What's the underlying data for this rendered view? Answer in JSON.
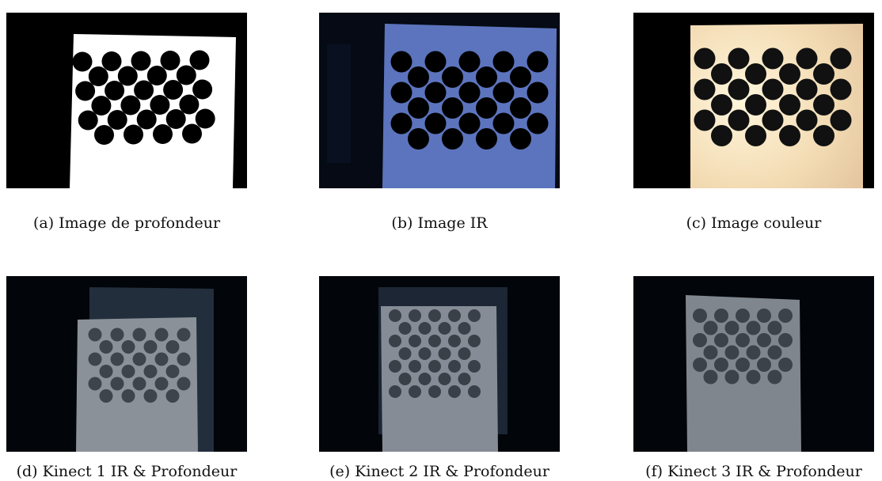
{
  "figure": {
    "panels": [
      {
        "id": "a",
        "caption": "(a) Image de profondeur"
      },
      {
        "id": "b",
        "caption": "(b) Image IR"
      },
      {
        "id": "c",
        "caption": "(c) Image couleur"
      },
      {
        "id": "d",
        "caption": "(d) Kinect 1 IR & Profondeur"
      },
      {
        "id": "e",
        "caption": "(e) Kinect 2 IR & Profondeur"
      },
      {
        "id": "f",
        "caption": "(f) Kinect 3 IR & Profondeur"
      }
    ]
  }
}
